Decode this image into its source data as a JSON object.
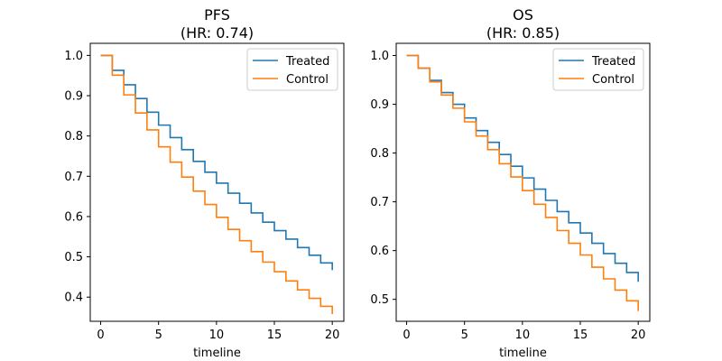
{
  "chart_data": [
    {
      "type": "line",
      "step": true,
      "title": "PFS\n(HR: 0.74)",
      "xlabel": "timeline",
      "ylabel": "",
      "xlim": [
        -0.9,
        21.0
      ],
      "ylim": [
        0.34,
        1.03
      ],
      "xticks": [
        0,
        5,
        10,
        15,
        20
      ],
      "yticks": [
        0.4,
        0.5,
        0.6,
        0.7,
        0.8,
        0.9,
        1.0
      ],
      "ytick_labels": [
        "0.4",
        "0.5",
        "0.6",
        "0.7",
        "0.8",
        "0.9",
        "1.0"
      ],
      "legend_position": "top-right",
      "series": [
        {
          "name": "Treated",
          "color": "#1f77b4",
          "x": [
            0,
            1,
            2,
            3,
            4,
            5,
            6,
            7,
            8,
            9,
            10,
            11,
            12,
            13,
            14,
            15,
            16,
            17,
            18,
            19,
            20
          ],
          "y": [
            1.0,
            0.963,
            0.927,
            0.893,
            0.859,
            0.827,
            0.796,
            0.766,
            0.737,
            0.71,
            0.683,
            0.658,
            0.633,
            0.609,
            0.586,
            0.565,
            0.544,
            0.523,
            0.504,
            0.485,
            0.467
          ]
        },
        {
          "name": "Control",
          "color": "#ff7f0e",
          "x": [
            0,
            1,
            2,
            3,
            4,
            5,
            6,
            7,
            8,
            9,
            10,
            11,
            12,
            13,
            14,
            15,
            16,
            17,
            18,
            19,
            20
          ],
          "y": [
            1.0,
            0.951,
            0.902,
            0.857,
            0.815,
            0.773,
            0.735,
            0.698,
            0.663,
            0.63,
            0.598,
            0.568,
            0.54,
            0.513,
            0.487,
            0.463,
            0.44,
            0.418,
            0.397,
            0.377,
            0.358
          ]
        }
      ]
    },
    {
      "type": "line",
      "step": true,
      "title": "OS\n(HR: 0.85)",
      "xlabel": "timeline",
      "ylabel": "",
      "xlim": [
        -0.9,
        21.0
      ],
      "ylim": [
        0.455,
        1.025
      ],
      "xticks": [
        0,
        5,
        10,
        15,
        20
      ],
      "yticks": [
        0.5,
        0.6,
        0.7,
        0.8,
        0.9,
        1.0
      ],
      "ytick_labels": [
        "0.5",
        "0.6",
        "0.7",
        "0.8",
        "0.9",
        "1.0"
      ],
      "legend_position": "top-right",
      "series": [
        {
          "name": "Treated",
          "color": "#1f77b4",
          "x": [
            0,
            1,
            2,
            3,
            4,
            5,
            6,
            7,
            8,
            9,
            10,
            11,
            12,
            13,
            14,
            15,
            16,
            17,
            18,
            19,
            20
          ],
          "y": [
            1.0,
            0.974,
            0.949,
            0.924,
            0.9,
            0.872,
            0.846,
            0.822,
            0.797,
            0.773,
            0.749,
            0.726,
            0.703,
            0.68,
            0.657,
            0.636,
            0.615,
            0.594,
            0.574,
            0.555,
            0.536
          ]
        },
        {
          "name": "Control",
          "color": "#ff7f0e",
          "x": [
            0,
            1,
            2,
            3,
            4,
            5,
            6,
            7,
            8,
            9,
            10,
            11,
            12,
            13,
            14,
            15,
            16,
            17,
            18,
            19,
            20
          ],
          "y": [
            1.0,
            0.974,
            0.946,
            0.919,
            0.892,
            0.864,
            0.835,
            0.807,
            0.778,
            0.751,
            0.723,
            0.695,
            0.668,
            0.641,
            0.615,
            0.591,
            0.566,
            0.542,
            0.519,
            0.497,
            0.476
          ]
        }
      ]
    }
  ]
}
